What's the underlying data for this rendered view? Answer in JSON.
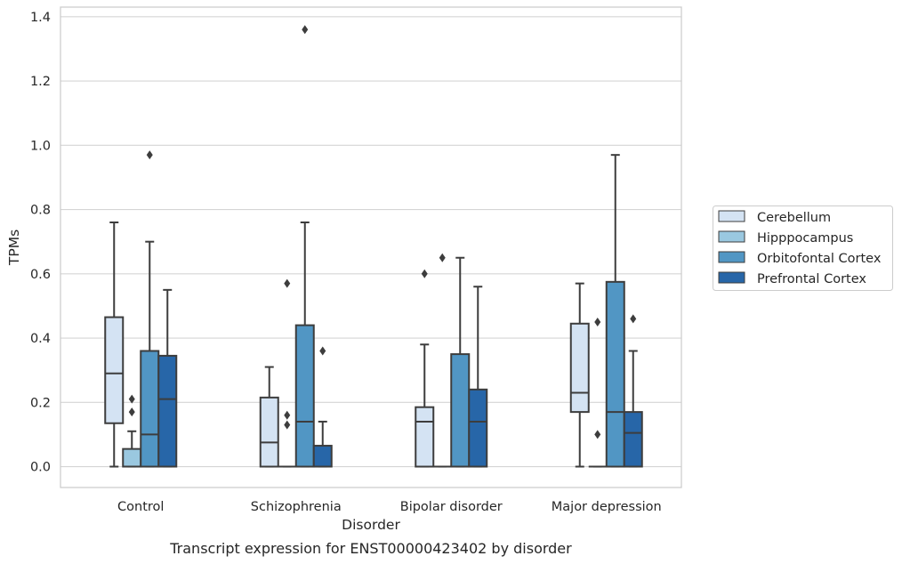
{
  "chart_data": {
    "type": "box",
    "caption": "Transcript expression for ENST00000423402 by disorder",
    "xlabel": "Disorder",
    "ylabel": "TPMs",
    "ylim": [
      -0.065,
      1.43
    ],
    "yticks": [
      "0.0",
      "0.2",
      "0.4",
      "0.6",
      "0.8",
      "1.0",
      "1.2",
      "1.4"
    ],
    "grid": true,
    "legend_position": "right",
    "categories": [
      "Control",
      "Schizophrenia",
      "Bipolar disorder",
      "Major depression"
    ],
    "series": [
      {
        "name": "Cerebellum",
        "color": "#d4e3f3",
        "boxes": [
          {
            "whislo": 0.0,
            "q1": 0.135,
            "med": 0.29,
            "q3": 0.465,
            "whishi": 0.76,
            "fliers": []
          },
          {
            "whislo": 0.0,
            "q1": 0.0,
            "med": 0.075,
            "q3": 0.215,
            "whishi": 0.31,
            "fliers": []
          },
          {
            "whislo": 0.0,
            "q1": 0.0,
            "med": 0.14,
            "q3": 0.185,
            "whishi": 0.38,
            "fliers": [
              0.6
            ]
          },
          {
            "whislo": 0.0,
            "q1": 0.17,
            "med": 0.23,
            "q3": 0.445,
            "whishi": 0.57,
            "fliers": []
          }
        ]
      },
      {
        "name": "Hipppocampus",
        "color": "#9ac8e0",
        "boxes": [
          {
            "whislo": 0.0,
            "q1": 0.0,
            "med": 0.0,
            "q3": 0.055,
            "whishi": 0.11,
            "fliers": [
              0.17,
              0.21
            ]
          },
          {
            "whislo": 0.0,
            "q1": 0.0,
            "med": 0.0,
            "q3": 0.0,
            "whishi": 0.0,
            "fliers": [
              0.13,
              0.16,
              0.57
            ]
          },
          {
            "whislo": 0.0,
            "q1": 0.0,
            "med": 0.0,
            "q3": 0.0,
            "whishi": 0.0,
            "fliers": [
              0.65
            ]
          },
          {
            "whislo": 0.0,
            "q1": 0.0,
            "med": 0.0,
            "q3": 0.0,
            "whishi": 0.0,
            "fliers": [
              0.1,
              0.45
            ]
          }
        ]
      },
      {
        "name": "Orbitofontal Cortex",
        "color": "#5196c4",
        "boxes": [
          {
            "whislo": 0.0,
            "q1": 0.0,
            "med": 0.1,
            "q3": 0.36,
            "whishi": 0.7,
            "fliers": [
              0.97
            ]
          },
          {
            "whislo": 0.0,
            "q1": 0.0,
            "med": 0.14,
            "q3": 0.44,
            "whishi": 0.76,
            "fliers": [
              1.36
            ]
          },
          {
            "whislo": 0.0,
            "q1": 0.0,
            "med": 0.0,
            "q3": 0.35,
            "whishi": 0.65,
            "fliers": []
          },
          {
            "whislo": 0.0,
            "q1": 0.0,
            "med": 0.17,
            "q3": 0.575,
            "whishi": 0.97,
            "fliers": []
          }
        ]
      },
      {
        "name": "Prefrontal Cortex",
        "color": "#2766a8",
        "boxes": [
          {
            "whislo": 0.0,
            "q1": 0.0,
            "med": 0.21,
            "q3": 0.345,
            "whishi": 0.55,
            "fliers": []
          },
          {
            "whislo": 0.0,
            "q1": 0.0,
            "med": 0.0,
            "q3": 0.065,
            "whishi": 0.14,
            "fliers": [
              0.36
            ]
          },
          {
            "whislo": 0.0,
            "q1": 0.0,
            "med": 0.14,
            "q3": 0.24,
            "whishi": 0.56,
            "fliers": []
          },
          {
            "whislo": 0.0,
            "q1": 0.0,
            "med": 0.105,
            "q3": 0.17,
            "whishi": 0.36,
            "fliers": [
              0.46
            ]
          }
        ]
      }
    ]
  }
}
